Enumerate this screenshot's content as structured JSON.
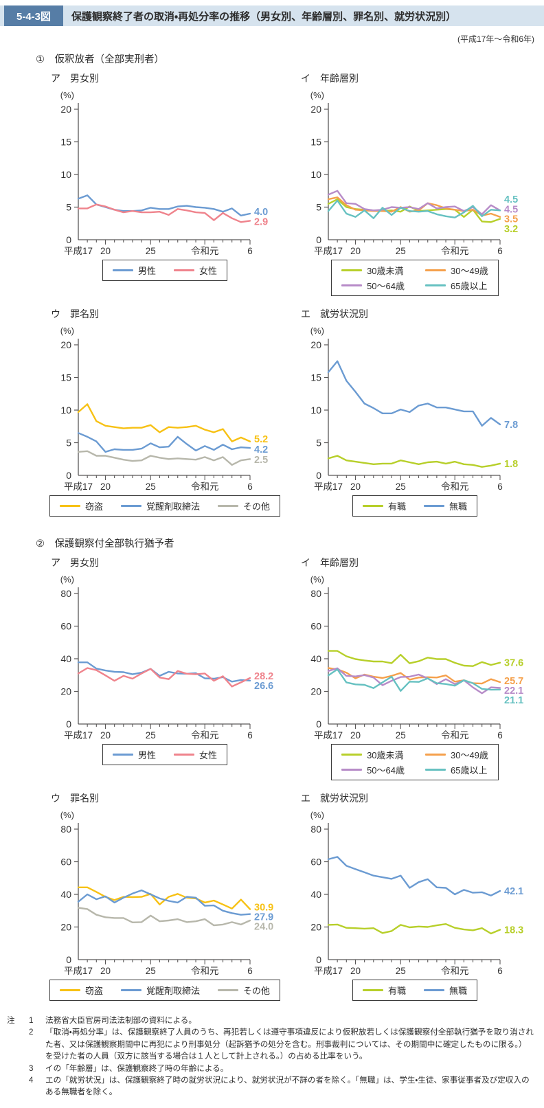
{
  "header": {
    "figure_no": "5-4-3図",
    "title": "保護観察終了者の取消・再処分率の推移（男女別、年齢層別、罪名別、就労状況別）",
    "year_range": "(平成17年～令和6年)"
  },
  "style": {
    "axis_color": "#595757",
    "text_color": "#333333",
    "band_color": "#d6e3ee",
    "badge_color": "#567da6"
  },
  "sections": [
    {
      "title": "①　仮釈放者（全部実刑者）"
    },
    {
      "title": "②　保護観察付全部執行猶予者"
    }
  ],
  "chart_data": [
    {
      "type": "line",
      "label": "ア　男女別",
      "unit": "(%)",
      "ylim": [
        0,
        20
      ],
      "yticks": [
        0,
        5,
        10,
        15,
        20
      ],
      "x_labels": [
        {
          "text": "平成17",
          "index": 0
        },
        {
          "text": "20",
          "index": 3
        },
        {
          "text": "25",
          "index": 8
        },
        {
          "text": "令和元",
          "index": 14
        },
        {
          "text": "6",
          "index": 19
        }
      ],
      "series": [
        {
          "name": "男性",
          "color": "#6b9bd2",
          "end_label": "4.0",
          "label_y": 4.3,
          "values": [
            6.3,
            6.8,
            5.4,
            5.0,
            4.6,
            4.4,
            4.4,
            4.5,
            4.9,
            4.7,
            4.7,
            5.1,
            5.2,
            5.0,
            4.9,
            4.7,
            4.3,
            4.8,
            3.7,
            4.0
          ]
        },
        {
          "name": "女性",
          "color": "#ef838c",
          "end_label": "2.9",
          "label_y": 2.8,
          "values": [
            4.8,
            4.8,
            5.4,
            5.1,
            4.6,
            4.2,
            4.4,
            4.2,
            4.2,
            4.3,
            3.8,
            4.7,
            4.5,
            4.2,
            4.1,
            3.0,
            4.1,
            3.3,
            2.7,
            2.9
          ]
        }
      ]
    },
    {
      "type": "line",
      "label": "イ　年齢層別",
      "unit": "(%)",
      "ylim": [
        0,
        20
      ],
      "yticks": [
        0,
        5,
        10,
        15,
        20
      ],
      "x_labels": [
        {
          "text": "平成17",
          "index": 0
        },
        {
          "text": "20",
          "index": 3
        },
        {
          "text": "25",
          "index": 8
        },
        {
          "text": "令和元",
          "index": 14
        },
        {
          "text": "6",
          "index": 19
        }
      ],
      "series": [
        {
          "name": "30歳未満",
          "color": "#b7cf2a",
          "end_label": "3.2",
          "label_y": 1.7,
          "values": [
            5.5,
            6.2,
            5.0,
            4.7,
            4.6,
            4.5,
            4.4,
            4.5,
            4.3,
            5.1,
            4.4,
            4.5,
            4.6,
            4.7,
            4.6,
            3.5,
            4.6,
            2.8,
            2.7,
            3.2
          ]
        },
        {
          "name": "30～49歳",
          "color": "#f5a04b",
          "end_label": "3.5",
          "label_y": 3.2,
          "values": [
            6.2,
            6.5,
            5.3,
            4.6,
            4.5,
            4.4,
            4.4,
            4.3,
            5.0,
            4.3,
            4.5,
            5.6,
            5.3,
            4.8,
            4.6,
            4.4,
            4.6,
            3.7,
            4.0,
            3.5
          ]
        },
        {
          "name": "50～64歳",
          "color": "#b78bc8",
          "end_label": "4.5",
          "label_y": 4.7,
          "values": [
            6.9,
            7.5,
            5.6,
            5.5,
            4.7,
            4.5,
            4.6,
            5.0,
            4.9,
            5.0,
            4.7,
            5.6,
            4.8,
            5.0,
            5.1,
            4.4,
            5.0,
            3.9,
            5.3,
            4.5
          ]
        },
        {
          "name": "65歳以上",
          "color": "#66c1c1",
          "end_label": "4.5",
          "label_y": 6.2,
          "values": [
            4.4,
            6.0,
            4.0,
            3.5,
            4.5,
            3.3,
            4.9,
            3.8,
            4.9,
            4.4,
            4.3,
            4.4,
            3.9,
            3.6,
            3.4,
            4.2,
            5.2,
            3.6,
            4.6,
            4.5
          ]
        }
      ]
    },
    {
      "type": "line",
      "label": "ウ　罪名別",
      "unit": "(%)",
      "ylim": [
        0,
        20
      ],
      "yticks": [
        0,
        5,
        10,
        15,
        20
      ],
      "x_labels": [
        {
          "text": "平成17",
          "index": 0
        },
        {
          "text": "20",
          "index": 3
        },
        {
          "text": "25",
          "index": 8
        },
        {
          "text": "令和元",
          "index": 14
        },
        {
          "text": "6",
          "index": 19
        }
      ],
      "series": [
        {
          "name": "窃盗",
          "color": "#f7c114",
          "end_label": "5.2",
          "label_y": 5.6,
          "values": [
            9.7,
            10.9,
            8.3,
            7.6,
            7.4,
            7.2,
            7.3,
            7.3,
            7.7,
            6.6,
            7.4,
            7.3,
            7.4,
            7.6,
            7.0,
            6.6,
            7.1,
            5.2,
            5.8,
            5.2
          ]
        },
        {
          "name": "覚醒剤取締法",
          "color": "#6b9bd2",
          "end_label": "4.2",
          "label_y": 4.0,
          "values": [
            6.5,
            5.9,
            5.2,
            3.6,
            4.0,
            3.9,
            3.9,
            4.1,
            4.9,
            4.3,
            4.4,
            5.9,
            4.8,
            3.8,
            4.5,
            3.9,
            4.7,
            4.0,
            4.3,
            4.2
          ]
        },
        {
          "name": "その他",
          "color": "#b7b7ab",
          "end_label": "2.5",
          "label_y": 2.4,
          "values": [
            3.6,
            3.7,
            3.0,
            3.0,
            2.7,
            2.4,
            2.2,
            2.3,
            3.0,
            2.7,
            2.5,
            2.6,
            2.5,
            2.4,
            2.8,
            2.3,
            2.8,
            1.6,
            2.3,
            2.5
          ]
        }
      ]
    },
    {
      "type": "line",
      "label": "エ　就労状況別",
      "unit": "(%)",
      "ylim": [
        0,
        20
      ],
      "yticks": [
        0,
        5,
        10,
        15,
        20
      ],
      "x_labels": [
        {
          "text": "平成17",
          "index": 0
        },
        {
          "text": "20",
          "index": 3
        },
        {
          "text": "25",
          "index": 8
        },
        {
          "text": "令和元",
          "index": 14
        },
        {
          "text": "6",
          "index": 19
        }
      ],
      "series": [
        {
          "name": "有職",
          "color": "#b7cf2a",
          "end_label": "1.8",
          "label_y": 1.8,
          "values": [
            2.6,
            3.0,
            2.3,
            2.1,
            1.9,
            1.7,
            1.8,
            1.8,
            2.3,
            2.0,
            1.7,
            2.0,
            2.1,
            1.8,
            2.1,
            1.7,
            1.6,
            1.3,
            1.5,
            1.8
          ]
        },
        {
          "name": "無職",
          "color": "#6b9bd2",
          "end_label": "7.8",
          "label_y": 7.8,
          "values": [
            15.8,
            17.5,
            14.5,
            12.8,
            11.0,
            10.3,
            9.5,
            9.5,
            10.1,
            9.7,
            10.7,
            11.0,
            10.4,
            10.4,
            10.1,
            9.8,
            9.8,
            7.6,
            8.8,
            7.8
          ]
        }
      ]
    },
    {
      "type": "line",
      "label": "ア　男女別",
      "unit": "(%)",
      "ylim": [
        0,
        80
      ],
      "yticks": [
        0,
        20,
        40,
        60,
        80
      ],
      "x_labels": [
        {
          "text": "平成17",
          "index": 0
        },
        {
          "text": "20",
          "index": 3
        },
        {
          "text": "25",
          "index": 8
        },
        {
          "text": "令和元",
          "index": 14
        },
        {
          "text": "6",
          "index": 19
        }
      ],
      "series": [
        {
          "name": "男性",
          "color": "#6b9bd2",
          "end_label": "26.6",
          "label_y": 23.5,
          "values": [
            37.8,
            37.8,
            34.0,
            32.8,
            32.0,
            31.8,
            30.5,
            31.5,
            33.8,
            29.5,
            32.0,
            31.0,
            30.8,
            31.2,
            28.0,
            27.8,
            28.7,
            26.0,
            27.0,
            26.6
          ]
        },
        {
          "name": "女性",
          "color": "#ef838c",
          "end_label": "28.2",
          "label_y": 29.5,
          "values": [
            31.0,
            34.3,
            33.0,
            29.8,
            26.5,
            29.5,
            27.8,
            31.0,
            33.8,
            28.5,
            27.5,
            32.5,
            30.8,
            30.5,
            31.0,
            26.5,
            29.3,
            23.0,
            25.5,
            28.2
          ]
        }
      ]
    },
    {
      "type": "line",
      "label": "イ　年齢層別",
      "unit": "(%)",
      "ylim": [
        0,
        80
      ],
      "yticks": [
        0,
        20,
        40,
        60,
        80
      ],
      "x_labels": [
        {
          "text": "平成17",
          "index": 0
        },
        {
          "text": "20",
          "index": 3
        },
        {
          "text": "25",
          "index": 8
        },
        {
          "text": "令和元",
          "index": 14
        },
        {
          "text": "6",
          "index": 19
        }
      ],
      "series": [
        {
          "name": "30歳未満",
          "color": "#b7cf2a",
          "end_label": "37.6",
          "label_y": 37.6,
          "values": [
            44.8,
            44.8,
            41.5,
            39.8,
            39.0,
            38.3,
            38.3,
            37.3,
            42.5,
            37.2,
            38.5,
            40.7,
            39.8,
            39.8,
            37.5,
            35.8,
            35.5,
            38.0,
            36.2,
            37.6
          ]
        },
        {
          "name": "30～49歳",
          "color": "#f5a04b",
          "end_label": "25.7",
          "label_y": 26.6,
          "values": [
            34.3,
            33.5,
            31.5,
            28.0,
            30.3,
            29.0,
            28.2,
            29.5,
            31.3,
            27.2,
            28.5,
            28.7,
            28.5,
            29.8,
            26.0,
            26.8,
            25.0,
            24.8,
            27.5,
            25.7
          ]
        },
        {
          "name": "50～64歳",
          "color": "#b78bc8",
          "end_label": "22.1",
          "label_y": 20.7,
          "values": [
            32.5,
            34.2,
            29.5,
            29.2,
            30.0,
            28.5,
            23.8,
            26.5,
            28.8,
            29.0,
            30.3,
            28.0,
            24.5,
            27.5,
            24.5,
            26.8,
            22.5,
            18.8,
            22.5,
            22.1
          ]
        },
        {
          "name": "65歳以上",
          "color": "#66c1c1",
          "end_label": "21.1",
          "label_y": 14.8,
          "values": [
            29.8,
            33.5,
            25.5,
            24.3,
            24.0,
            22.0,
            25.5,
            29.0,
            20.3,
            26.0,
            25.8,
            28.0,
            25.0,
            24.5,
            23.5,
            26.8,
            25.0,
            21.5,
            21.0,
            21.1
          ]
        }
      ]
    },
    {
      "type": "line",
      "label": "ウ　罪名別",
      "unit": "(%)",
      "ylim": [
        0,
        80
      ],
      "yticks": [
        0,
        20,
        40,
        60,
        80
      ],
      "x_labels": [
        {
          "text": "平成17",
          "index": 0
        },
        {
          "text": "20",
          "index": 3
        },
        {
          "text": "25",
          "index": 8
        },
        {
          "text": "令和元",
          "index": 14
        },
        {
          "text": "6",
          "index": 19
        }
      ],
      "series": [
        {
          "name": "窃盗",
          "color": "#f7c114",
          "end_label": "30.9",
          "label_y": 32.3,
          "values": [
            44.3,
            44.3,
            41.5,
            38.5,
            36.5,
            38.5,
            38.3,
            38.5,
            40.3,
            33.8,
            38.5,
            40.3,
            38.0,
            37.5,
            35.0,
            36.2,
            33.8,
            31.3,
            36.8,
            30.9
          ]
        },
        {
          "name": "覚醒剤取締法",
          "color": "#6b9bd2",
          "end_label": "27.9",
          "label_y": 26.4,
          "values": [
            35.5,
            40.0,
            37.0,
            38.8,
            35.0,
            38.0,
            40.5,
            42.5,
            40.0,
            37.5,
            36.0,
            35.0,
            38.5,
            38.0,
            33.0,
            33.2,
            30.0,
            28.5,
            27.5,
            27.9
          ]
        },
        {
          "name": "その他",
          "color": "#b7b7ab",
          "end_label": "24.0",
          "label_y": 20.5,
          "values": [
            31.8,
            31.0,
            27.5,
            26.0,
            25.5,
            25.5,
            22.8,
            23.0,
            27.0,
            23.5,
            24.0,
            24.8,
            23.0,
            23.5,
            24.8,
            21.0,
            21.5,
            23.0,
            21.5,
            24.0
          ]
        }
      ]
    },
    {
      "type": "line",
      "label": "エ　就労状況別",
      "unit": "(%)",
      "ylim": [
        0,
        80
      ],
      "yticks": [
        0,
        20,
        40,
        60,
        80
      ],
      "x_labels": [
        {
          "text": "平成17",
          "index": 0
        },
        {
          "text": "20",
          "index": 3
        },
        {
          "text": "25",
          "index": 8
        },
        {
          "text": "令和元",
          "index": 14
        },
        {
          "text": "6",
          "index": 19
        }
      ],
      "series": [
        {
          "name": "有職",
          "color": "#b7cf2a",
          "end_label": "18.3",
          "label_y": 18.3,
          "values": [
            21.3,
            21.5,
            19.5,
            19.3,
            19.0,
            19.3,
            16.3,
            17.5,
            21.3,
            19.8,
            20.3,
            20.0,
            21.0,
            21.8,
            19.5,
            18.5,
            18.0,
            19.3,
            16.0,
            18.3
          ]
        },
        {
          "name": "無職",
          "color": "#6b9bd2",
          "end_label": "42.1",
          "label_y": 42.1,
          "values": [
            61.5,
            63.0,
            57.5,
            55.5,
            53.5,
            51.5,
            50.5,
            49.5,
            51.5,
            44.0,
            47.5,
            49.3,
            44.3,
            44.0,
            40.0,
            42.8,
            41.0,
            41.3,
            39.3,
            42.1
          ]
        }
      ]
    }
  ],
  "notes": {
    "label": "注",
    "items": [
      {
        "no": "1",
        "text": "法務省大臣官房司法法制部の資料による。"
      },
      {
        "no": "2",
        "text": "「取消・再処分率」は、保護観察終了人員のうち、再犯若しくは遵守事項違反により仮釈放若しくは保護観察付全部執行猶予を取り消された者、又は保護観察期間中に再犯により刑事処分（起訴猶予の処分を含む。刑事裁判については、その期間中に確定したものに限る。）を受けた者の人員（双方に該当する場合は１人として計上される。）の占める比率をいう。"
      },
      {
        "no": "3",
        "text": "イの「年齢層」は、保護観察終了時の年齢による。"
      },
      {
        "no": "4",
        "text": "エの「就労状況」は、保護観察終了時の就労状況により、就労状況が不詳の者を除く。「無職」は、学生・生徒、家事従事者及び定収入のある無職者を除く。"
      }
    ]
  }
}
